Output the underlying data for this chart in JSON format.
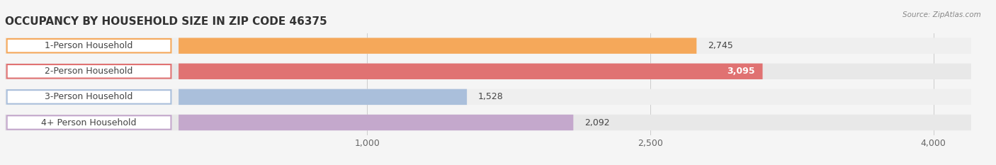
{
  "title": "OCCUPANCY BY HOUSEHOLD SIZE IN ZIP CODE 46375",
  "source": "Source: ZipAtlas.com",
  "categories": [
    "1-Person Household",
    "2-Person Household",
    "3-Person Household",
    "4+ Person Household"
  ],
  "values": [
    2745,
    3095,
    1528,
    2092
  ],
  "bar_colors": [
    "#F5A85A",
    "#E07272",
    "#AABFDB",
    "#C4A8CC"
  ],
  "xlim_data": [
    0,
    4000
  ],
  "xticks": [
    1000,
    2500,
    4000
  ],
  "bar_height": 0.62,
  "background_color": "#f5f5f5",
  "title_fontsize": 11,
  "label_fontsize": 9,
  "value_fontsize": 9,
  "tick_fontsize": 9,
  "value_2_color": "#ffffff"
}
